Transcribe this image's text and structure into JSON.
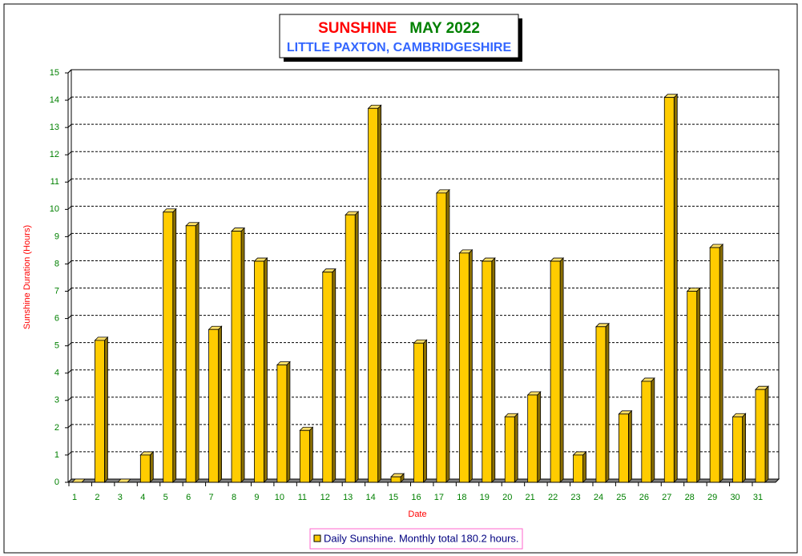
{
  "chart_data": {
    "type": "bar",
    "title": [
      "SUNSHINE",
      "MAY 2022"
    ],
    "subtitle": "LITTLE PAXTON, CAMBRIDGESHIRE",
    "y_label": "Sunshine Duration (Hours)",
    "x_label": "Date",
    "categories": [
      "1",
      "2",
      "3",
      "4",
      "5",
      "6",
      "7",
      "8",
      "9",
      "10",
      "11",
      "12",
      "13",
      "14",
      "15",
      "16",
      "17",
      "18",
      "19",
      "20",
      "21",
      "22",
      "23",
      "24",
      "25",
      "26",
      "27",
      "28",
      "29",
      "30",
      "31"
    ],
    "series": [
      {
        "name": "Daily Sunshine. Monthly total 180.2 hours.",
        "color": "#ffcc00",
        "values": [
          0,
          5.2,
          0,
          1.0,
          9.9,
          9.4,
          5.6,
          9.2,
          8.1,
          4.3,
          1.9,
          7.7,
          9.8,
          13.7,
          0.2,
          5.1,
          10.6,
          8.4,
          8.1,
          2.4,
          3.2,
          8.1,
          1.0,
          5.7,
          2.5,
          3.7,
          14.1,
          7.0,
          8.6,
          2.4,
          3.4
        ]
      }
    ],
    "ylim": [
      0,
      15
    ],
    "yticks": [
      0,
      1,
      2,
      3,
      4,
      5,
      6,
      7,
      8,
      9,
      10,
      11,
      12,
      13,
      14,
      15
    ],
    "grid": true
  }
}
